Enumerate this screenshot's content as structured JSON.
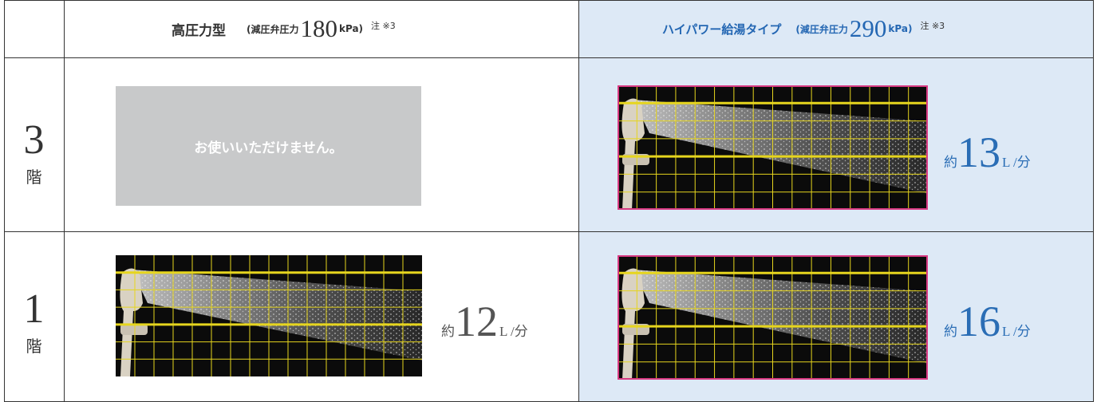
{
  "header": {
    "columns": [
      {
        "title": "高圧力型",
        "pressure_label": "(減圧弁圧力",
        "pressure": "180",
        "unit": "kPa)",
        "note": "注 ※3"
      },
      {
        "title": "ハイパワー給湯タイプ",
        "pressure_label": "(減圧弁圧力",
        "pressure": "290",
        "unit": "kPa)",
        "note": "注 ※3"
      }
    ]
  },
  "rows": [
    {
      "floor": "3",
      "floor_suffix": "階",
      "cells": [
        {
          "message": "お使いいただけません。"
        },
        {
          "prefix": "約",
          "value": "13",
          "unit": "L /分"
        }
      ]
    },
    {
      "floor": "1",
      "floor_suffix": "階",
      "cells": [
        {
          "prefix": "約",
          "value": "12",
          "unit": "L /分"
        },
        {
          "prefix": "約",
          "value": "16",
          "unit": "L /分"
        }
      ]
    }
  ]
}
